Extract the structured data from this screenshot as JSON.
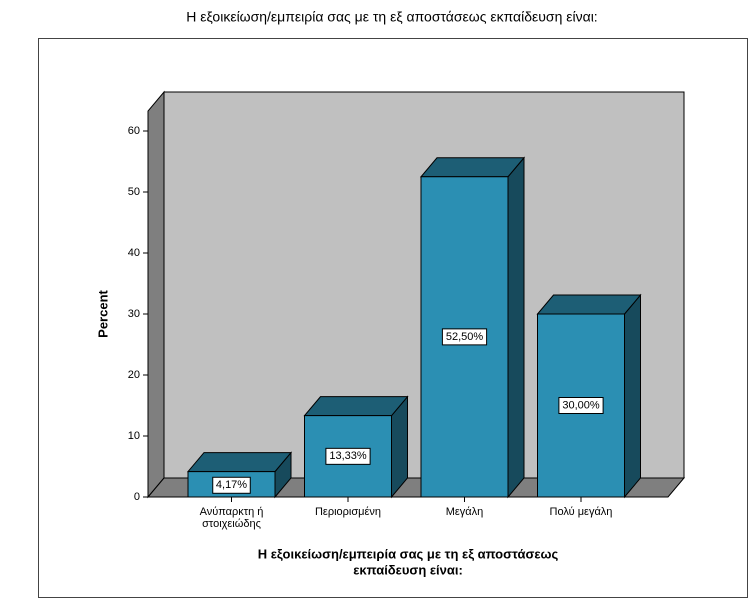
{
  "chart_data": {
    "type": "bar3d",
    "title": "Η εξοικείωση/εμπειρία  σας  με τη εξ αποστάσεως εκπαίδευση είναι:",
    "xlabel": [
      "Η εξοικείωση/εμπειρία  σας  με τη εξ αποστάσεως",
      "εκπαίδευση είναι:"
    ],
    "ylabel": "Percent",
    "categories": [
      "Ανύπαρκτη ή στοιχειώδης",
      "Περιορισμένη",
      "Μεγάλη",
      "Πολύ μεγάλη"
    ],
    "values": [
      4.17,
      13.33,
      52.5,
      30
    ],
    "value_labels": [
      "4,17%",
      "13,33%",
      "52,50%",
      "30,00%"
    ],
    "color": "#2b8fb3",
    "ylim": [
      0,
      60
    ],
    "yticks": [
      0,
      10,
      20,
      30,
      40,
      50,
      60
    ]
  }
}
